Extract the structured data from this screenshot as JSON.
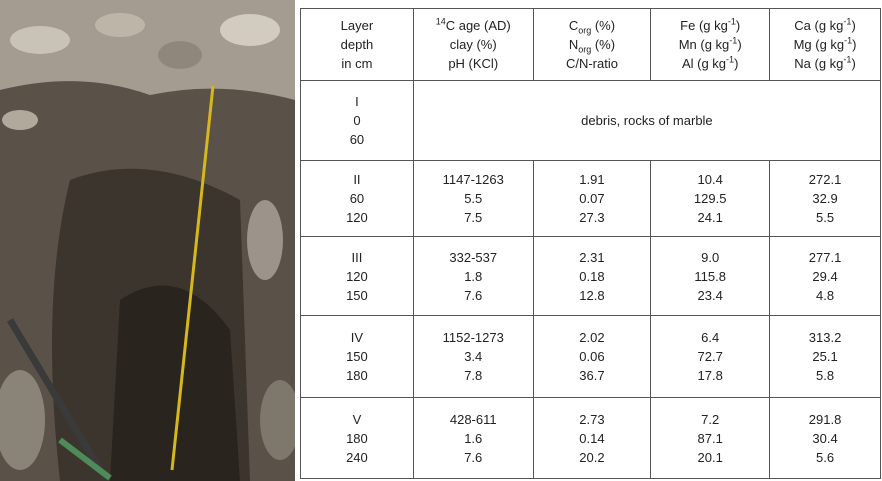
{
  "table": {
    "header": [
      [
        [
          "Layer"
        ],
        [
          "depth"
        ],
        [
          "in cm"
        ]
      ],
      [
        [
          {
            "text": "14",
            "style": "sup"
          },
          "C age (AD)"
        ],
        [
          "clay (%)"
        ],
        [
          "pH (KCl)"
        ]
      ],
      [
        [
          "C",
          {
            "text": "org",
            "style": "sub"
          },
          " (%)"
        ],
        [
          "N",
          {
            "text": "org",
            "style": "sub"
          },
          " (%)"
        ],
        [
          "C/N-ratio"
        ]
      ],
      [
        [
          "Fe (g kg",
          {
            "text": "-1",
            "style": "sup"
          },
          ")"
        ],
        [
          "Mn (g kg",
          {
            "text": "-1",
            "style": "sup"
          },
          ")"
        ],
        [
          "Al (g kg",
          {
            "text": "-1",
            "style": "sup"
          },
          ")"
        ]
      ],
      [
        [
          "Ca (g kg",
          {
            "text": "-1",
            "style": "sup"
          },
          ")"
        ],
        [
          "Mg (g kg",
          {
            "text": "-1",
            "style": "sup"
          },
          ")"
        ],
        [
          "Na (g kg",
          {
            "text": "-1",
            "style": "sup"
          },
          ")"
        ]
      ]
    ],
    "rows": [
      {
        "layer": [
          "I",
          "0",
          "60"
        ],
        "note": "debris, rocks of marble"
      },
      {
        "layer": [
          "II",
          "60",
          "120"
        ],
        "cells": [
          [
            "1147-1263",
            "5.5",
            "7.5"
          ],
          [
            "1.91",
            "0.07",
            "27.3"
          ],
          [
            "10.4",
            "129.5",
            "24.1"
          ],
          [
            "272.1",
            "32.9",
            "5.5"
          ]
        ]
      },
      {
        "layer": [
          "III",
          "120",
          "150"
        ],
        "cells": [
          [
            "332-537",
            "1.8",
            "7.6"
          ],
          [
            "2.31",
            "0.18",
            "12.8"
          ],
          [
            "9.0",
            "115.8",
            "23.4"
          ],
          [
            "277.1",
            "29.4",
            "4.8"
          ]
        ]
      },
      {
        "layer": [
          "IV",
          "150",
          "180"
        ],
        "cells": [
          [
            "1152-1273",
            "3.4",
            "7.8"
          ],
          [
            "2.02",
            "0.06",
            "36.7"
          ],
          [
            "6.4",
            "72.7",
            "17.8"
          ],
          [
            "313.2",
            "25.1",
            "5.8"
          ]
        ]
      },
      {
        "layer": [
          "V",
          "180",
          "240"
        ],
        "cells": [
          [
            "428-611",
            "1.6",
            "7.6"
          ],
          [
            "2.73",
            "0.14",
            "20.2"
          ],
          [
            "7.2",
            "87.1",
            "20.1"
          ],
          [
            "291.8",
            "30.4",
            "5.6"
          ]
        ]
      }
    ]
  }
}
